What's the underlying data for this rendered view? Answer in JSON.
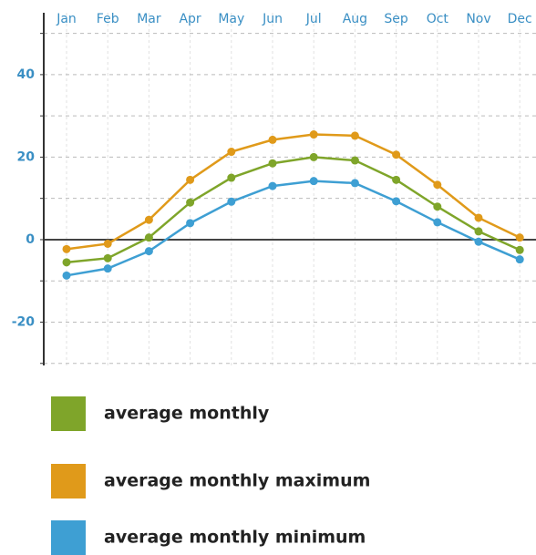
{
  "chart_data": {
    "type": "line",
    "categories": [
      "Jan",
      "Feb",
      "Mar",
      "Apr",
      "May",
      "Jun",
      "Jul",
      "Aug",
      "Sep",
      "Oct",
      "Nov",
      "Dec"
    ],
    "series": [
      {
        "name": "average monthly",
        "color": "#7fa52a",
        "values": [
          -5.5,
          -4.5,
          0.5,
          9,
          15,
          18.5,
          20,
          19.2,
          14.5,
          8,
          2,
          -2.5
        ]
      },
      {
        "name": "average monthly maximum",
        "color": "#e09a1a",
        "values": [
          -2.3,
          -1,
          4.8,
          14.5,
          21.3,
          24.2,
          25.5,
          25.2,
          20.6,
          13.3,
          5.3,
          0.5
        ]
      },
      {
        "name": "average monthly minimum",
        "color": "#3e9fd3",
        "values": [
          -8.7,
          -7,
          -2.8,
          4,
          9.2,
          13,
          14.2,
          13.7,
          9.3,
          4.2,
          -0.5,
          -4.8
        ]
      }
    ],
    "ylim": [
      -30.5,
      55
    ],
    "yticks": [
      -20,
      0,
      20,
      40
    ],
    "minor_yticks": [
      -30,
      -10,
      10,
      30,
      50
    ],
    "grid": true
  }
}
